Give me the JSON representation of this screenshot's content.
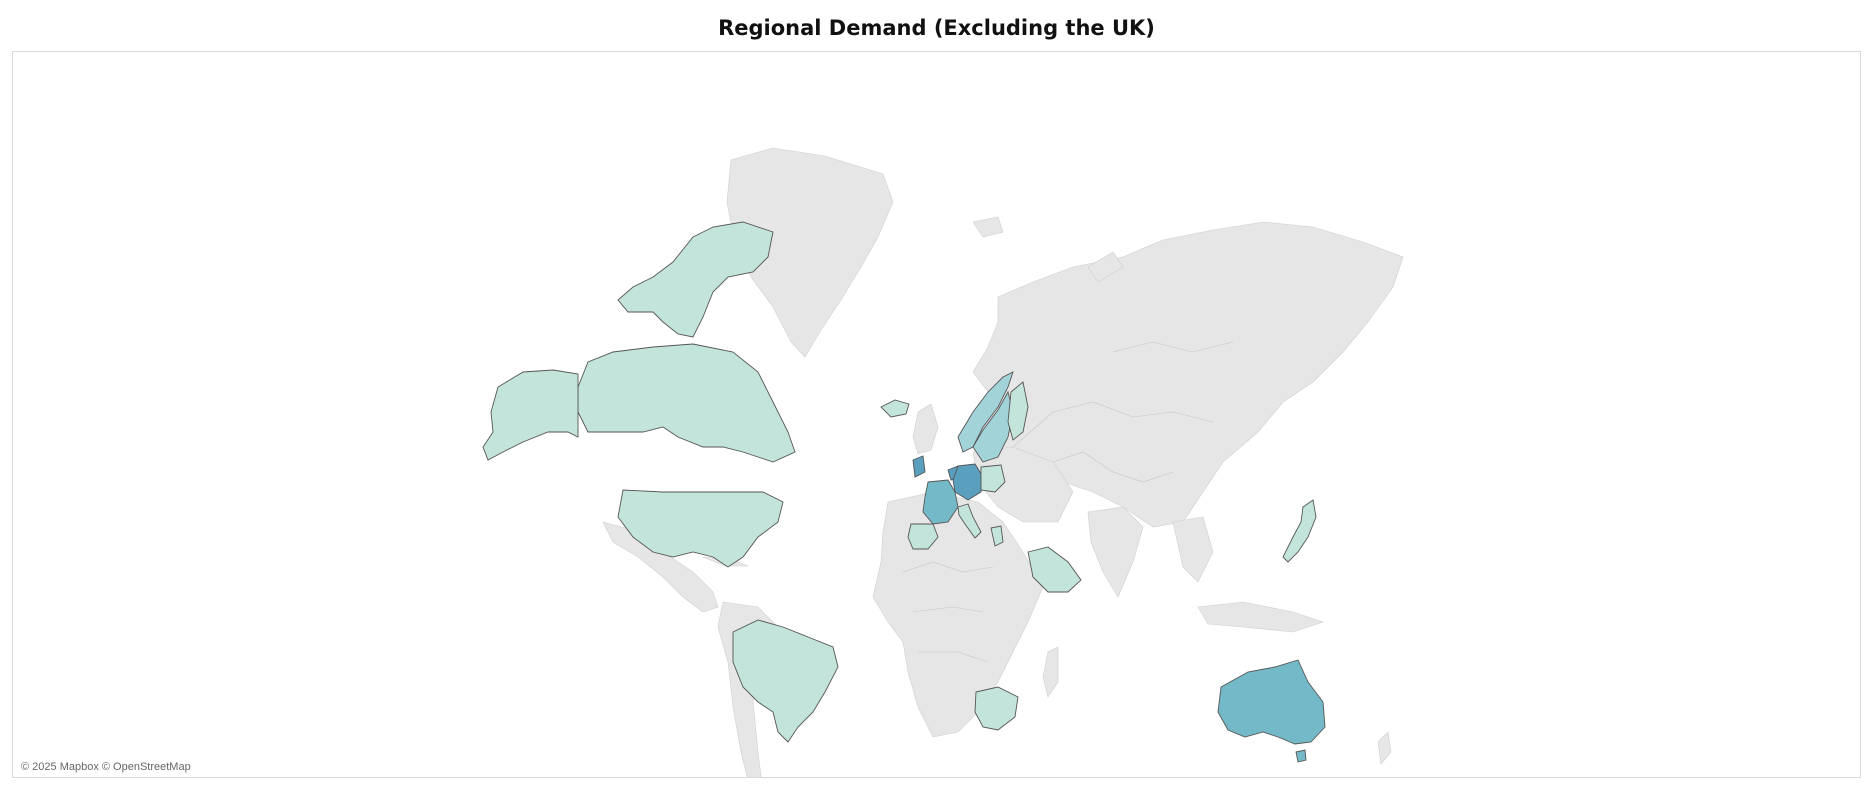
{
  "title": "Regional Demand (Excluding the UK)",
  "attribution": "© 2025 Mapbox © OpenStreetMap",
  "colors": {
    "base_land": "#e6e6e6",
    "low": "#c3e4da",
    "mid": "#a2d3d9",
    "high": "#74b9c8",
    "top": "#5a9fbd",
    "border": "#555555"
  },
  "map_data": {
    "type": "choropleth",
    "regions": [
      {
        "name": "United States",
        "level": "low"
      },
      {
        "name": "Canada",
        "level": "low"
      },
      {
        "name": "Alaska",
        "level": "low"
      },
      {
        "name": "Brazil",
        "level": "low"
      },
      {
        "name": "South Africa",
        "level": "low"
      },
      {
        "name": "Saudi Arabia",
        "level": "low"
      },
      {
        "name": "Japan",
        "level": "low"
      },
      {
        "name": "Iceland",
        "level": "low"
      },
      {
        "name": "Spain",
        "level": "low"
      },
      {
        "name": "Italy",
        "level": "low"
      },
      {
        "name": "Poland",
        "level": "low"
      },
      {
        "name": "Greece",
        "level": "low"
      },
      {
        "name": "Norway",
        "level": "mid"
      },
      {
        "name": "Sweden",
        "level": "mid"
      },
      {
        "name": "Finland",
        "level": "low"
      },
      {
        "name": "Australia",
        "level": "high"
      },
      {
        "name": "France",
        "level": "high"
      },
      {
        "name": "Germany",
        "level": "top"
      },
      {
        "name": "Ireland",
        "level": "top"
      },
      {
        "name": "Netherlands",
        "level": "top"
      }
    ]
  }
}
